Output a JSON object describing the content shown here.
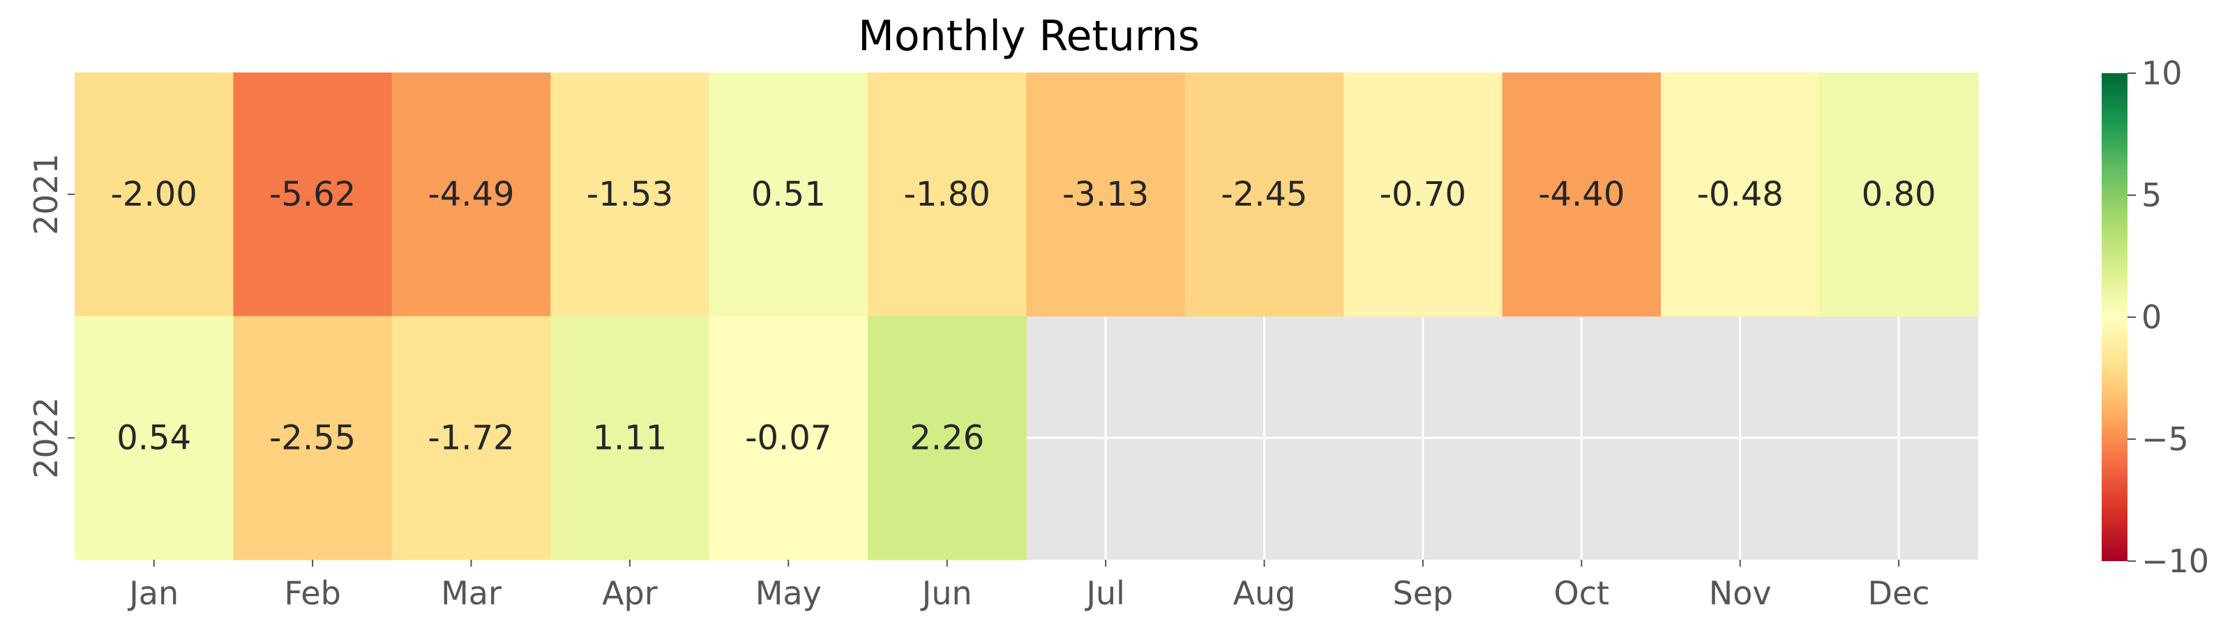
{
  "chart_data": {
    "type": "heatmap",
    "title": "Monthly Returns",
    "xlabel": "",
    "ylabel": "",
    "x_categories": [
      "Jan",
      "Feb",
      "Mar",
      "Apr",
      "May",
      "Jun",
      "Jul",
      "Aug",
      "Sep",
      "Oct",
      "Nov",
      "Dec"
    ],
    "y_categories": [
      "2021",
      "2022"
    ],
    "values": [
      [
        -2.0,
        -5.62,
        -4.49,
        -1.53,
        0.51,
        -1.8,
        -3.13,
        -2.45,
        -0.7,
        -4.4,
        -0.48,
        0.8
      ],
      [
        0.54,
        -2.55,
        -1.72,
        1.11,
        -0.07,
        2.26,
        null,
        null,
        null,
        null,
        null,
        null
      ]
    ],
    "value_labels": [
      [
        "-2.00",
        "-5.62",
        "-4.49",
        "-1.53",
        "0.51",
        "-1.80",
        "-3.13",
        "-2.45",
        "-0.70",
        "-4.40",
        "-0.48",
        "0.80"
      ],
      [
        "0.54",
        "-2.55",
        "-1.72",
        "1.11",
        "-0.07",
        "2.26",
        "",
        "",
        "",
        "",
        "",
        ""
      ]
    ],
    "colorbar": {
      "range": [
        -10,
        10
      ],
      "ticks": [
        10,
        5,
        0,
        -5,
        -10
      ],
      "tick_labels": [
        "10",
        "5",
        "0",
        "−5",
        "−10"
      ],
      "colormap": "RdYlGn"
    },
    "missing_color": "#e5e5e5",
    "grid_color": "#ffffff"
  }
}
